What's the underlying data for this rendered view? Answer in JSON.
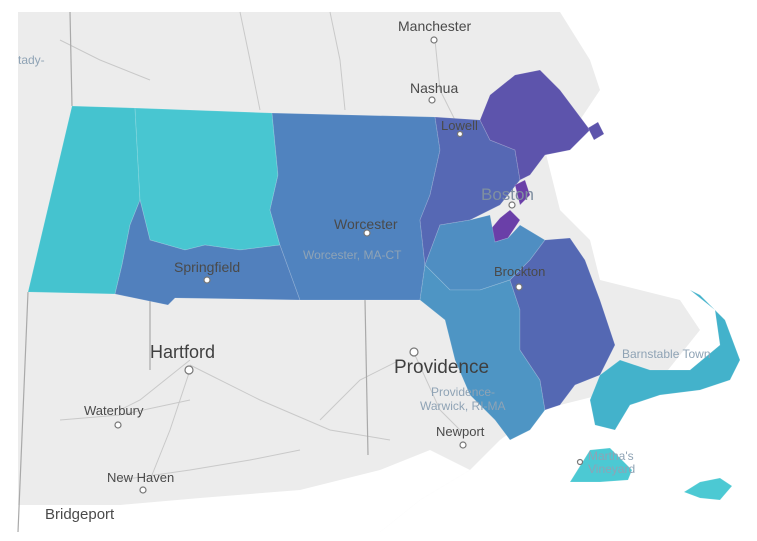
{
  "map": {
    "colors": {
      "background_land": "#ececec",
      "water": "#ffffff",
      "county_teal": "#45c3cf",
      "county_teal_light": "#4cc9d3",
      "county_blue": "#5087c0",
      "county_blue_mid": "#4f7dbc",
      "county_slate": "#5567b3",
      "county_violet": "#5e56ad",
      "county_purple": "#6a3fa8",
      "county_steel": "#4f93c2"
    },
    "labels": {
      "manchester": "Manchester",
      "nashua": "Nashua",
      "lowell": "Lowell",
      "boston": "Boston",
      "worcester": "Worcester",
      "worcester_metro": "Worcester, MA-CT",
      "springfield": "Springfield",
      "brockton": "Brockton",
      "hartford": "Hartford",
      "providence": "Providence",
      "providence_metro_1": "Providence-",
      "providence_metro_2": "Warwick, RI-MA",
      "newport": "Newport",
      "waterbury": "Waterbury",
      "new_haven": "New Haven",
      "bridgeport": "Bridgeport",
      "barnstable": "Barnstable Town",
      "marthas_1": "Martha's",
      "marthas_2": "Vineyard",
      "schenectady_fragment": "tady-"
    }
  }
}
